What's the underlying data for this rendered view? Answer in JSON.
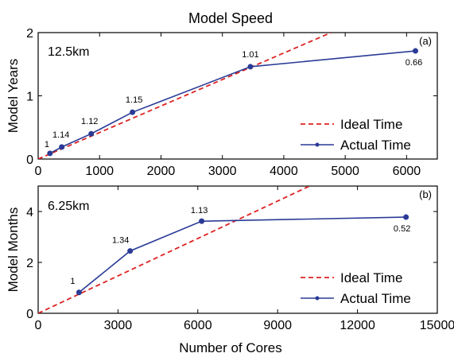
{
  "figure": {
    "title": "Model Speed",
    "xlabel": "Number of Cores"
  },
  "chart_data": [
    {
      "type": "line",
      "panel_label": "(a)",
      "resolution_label": "12.5km",
      "ylabel": "Model Years",
      "xlim": [
        0,
        6500
      ],
      "ylim": [
        0,
        2
      ],
      "xticks": [
        0,
        1000,
        2000,
        3000,
        4000,
        5000,
        6000
      ],
      "yticks": [
        0,
        1,
        2
      ],
      "legend_position": "bottom-right",
      "series": [
        {
          "name": "Ideal Time",
          "style": "dashed",
          "color": "#dd2222",
          "x": [
            0,
            4770
          ],
          "y": [
            0,
            2.0
          ]
        },
        {
          "name": "Actual Time",
          "style": "solid-marker",
          "color": "#2a3a96",
          "x": [
            192,
            384,
            864,
            1536,
            3456,
            6144
          ],
          "y": [
            0.09,
            0.19,
            0.4,
            0.74,
            1.46,
            1.71
          ]
        }
      ],
      "annotations": [
        {
          "text": "1",
          "x": 192,
          "y": 0.09
        },
        {
          "text": "1.14",
          "x": 384,
          "y": 0.19
        },
        {
          "text": "1.12",
          "x": 864,
          "y": 0.4
        },
        {
          "text": "1.15",
          "x": 1536,
          "y": 0.74
        },
        {
          "text": "1.01",
          "x": 3456,
          "y": 1.46
        },
        {
          "text": "0.66",
          "x": 6144,
          "y": 1.71
        }
      ]
    },
    {
      "type": "line",
      "panel_label": "(b)",
      "resolution_label": "6.25km",
      "ylabel": "Model Months",
      "xlim": [
        0,
        15000
      ],
      "ylim": [
        0,
        5
      ],
      "xticks": [
        0,
        3000,
        6000,
        9000,
        12000,
        15000
      ],
      "yticks": [
        0,
        2,
        4
      ],
      "legend_position": "bottom-right",
      "series": [
        {
          "name": "Ideal Time",
          "style": "dashed",
          "color": "#dd2222",
          "x": [
            0,
            10200
          ],
          "y": [
            0,
            5.0
          ]
        },
        {
          "name": "Actual Time",
          "style": "solid-marker",
          "color": "#2a3a96",
          "x": [
            1536,
            3456,
            6144,
            13824
          ],
          "y": [
            0.82,
            2.45,
            3.62,
            3.78
          ]
        }
      ],
      "annotations": [
        {
          "text": "1",
          "x": 1536,
          "y": 0.82
        },
        {
          "text": "1.34",
          "x": 3456,
          "y": 2.45
        },
        {
          "text": "1.13",
          "x": 6144,
          "y": 3.62
        },
        {
          "text": "0.52",
          "x": 13824,
          "y": 3.78
        }
      ]
    }
  ]
}
